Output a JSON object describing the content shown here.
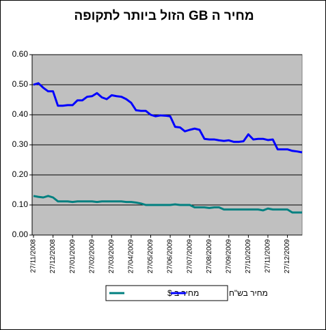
{
  "chart_data": {
    "type": "line",
    "title": "מחיר ה GB הזול ביותר לתקופה",
    "categories": [
      "27/11/2008",
      null,
      null,
      null,
      "27/12/2008",
      null,
      null,
      null,
      "27/01/2009",
      null,
      null,
      null,
      "27/02/2009",
      null,
      null,
      null,
      "27/03/2009",
      null,
      null,
      null,
      "27/04/2009",
      null,
      null,
      null,
      "27/05/2009",
      null,
      null,
      null,
      "27/06/2009",
      null,
      null,
      null,
      "27/07/2009",
      null,
      null,
      null,
      "27/08/2009",
      null,
      null,
      null,
      "27/09/2009",
      null,
      null,
      null,
      "27/10/2009",
      null,
      null,
      null,
      "27/11/2009",
      null,
      null,
      null,
      "27/12/2009",
      null,
      null,
      null
    ],
    "series": [
      {
        "name": "מחיר ב $",
        "color": "#008080",
        "values": [
          0.13,
          0.127,
          0.125,
          0.13,
          0.125,
          0.112,
          0.112,
          0.112,
          0.11,
          0.112,
          0.112,
          0.112,
          0.112,
          0.11,
          0.112,
          0.112,
          0.112,
          0.112,
          0.112,
          0.11,
          0.11,
          0.108,
          0.105,
          0.1,
          0.1,
          0.1,
          0.1,
          0.1,
          0.1,
          0.102,
          0.1,
          0.1,
          0.1,
          0.092,
          0.092,
          0.092,
          0.09,
          0.092,
          0.092,
          0.085,
          0.085,
          0.085,
          0.085,
          0.085,
          0.085,
          0.085,
          0.085,
          0.082,
          0.088,
          0.085,
          0.085,
          0.085,
          0.085,
          0.075,
          0.075,
          0.075
        ]
      },
      {
        "name": "מחיר בש\"ח",
        "color": "#0000ff",
        "values": [
          0.5,
          0.505,
          0.49,
          0.478,
          0.478,
          0.43,
          0.43,
          0.432,
          0.432,
          0.448,
          0.448,
          0.46,
          0.462,
          0.472,
          0.458,
          0.452,
          0.465,
          0.462,
          0.46,
          0.452,
          0.44,
          0.415,
          0.413,
          0.413,
          0.4,
          0.395,
          0.398,
          0.397,
          0.395,
          0.36,
          0.358,
          0.345,
          0.35,
          0.354,
          0.35,
          0.32,
          0.318,
          0.318,
          0.315,
          0.313,
          0.315,
          0.31,
          0.31,
          0.312,
          0.335,
          0.318,
          0.32,
          0.32,
          0.316,
          0.318,
          0.285,
          0.285,
          0.285,
          0.28,
          0.278,
          0.275
        ]
      }
    ],
    "ylim": [
      0,
      0.6
    ],
    "yticks": [
      {
        "value": 0,
        "label": "0.00"
      },
      {
        "value": 0.1,
        "label": "0.10"
      },
      {
        "value": 0.2,
        "label": "0.20"
      },
      {
        "value": 0.3,
        "label": "0.30"
      },
      {
        "value": 0.4,
        "label": "0.40"
      },
      {
        "value": 0.5,
        "label": "0.50"
      },
      {
        "value": 0.6,
        "label": "0.60"
      }
    ],
    "grid": true,
    "legend": "bottom"
  }
}
